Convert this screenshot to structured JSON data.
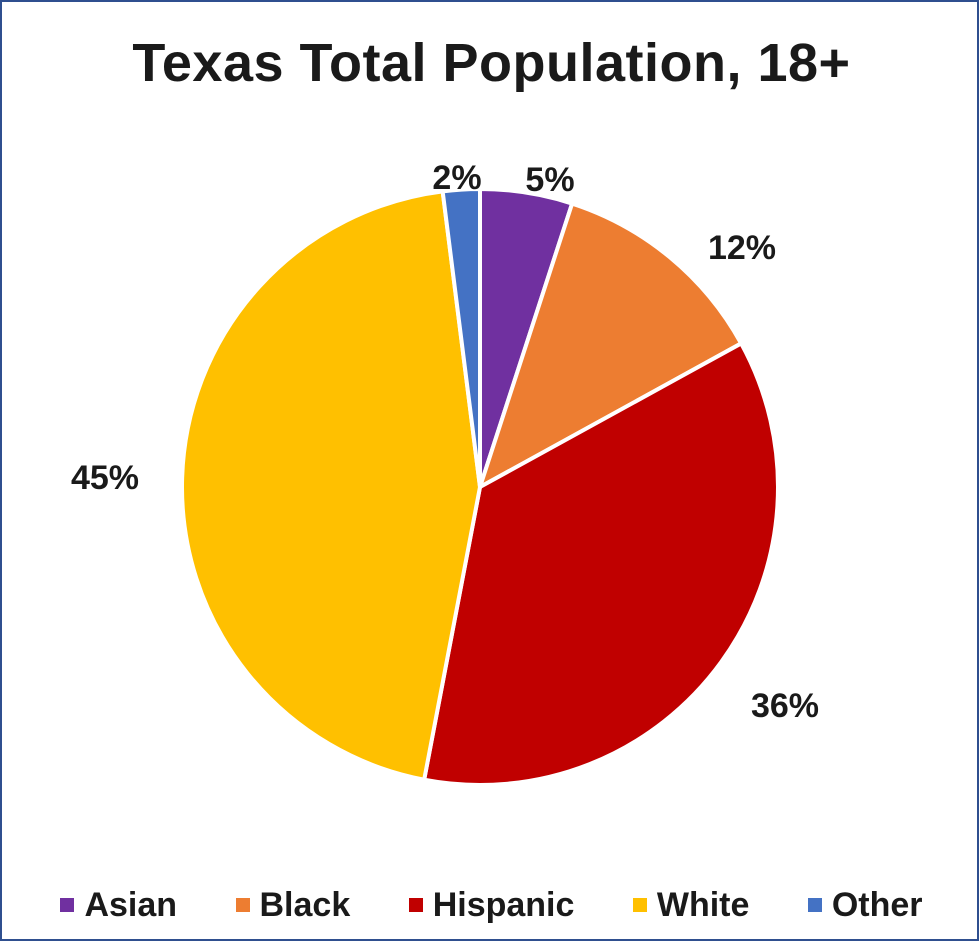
{
  "chart_data": {
    "type": "pie",
    "title": "Texas Total Population, 18+",
    "categories": [
      "Asian",
      "Black",
      "Hispanic",
      "White",
      "Other"
    ],
    "values": [
      5,
      12,
      36,
      45,
      2
    ],
    "labels": [
      "5%",
      "12%",
      "36%",
      "45%",
      "2%"
    ],
    "colors": [
      "#7030a0",
      "#ed7d31",
      "#c00000",
      "#ffc000",
      "#4472c4"
    ],
    "legend_position": "bottom"
  }
}
